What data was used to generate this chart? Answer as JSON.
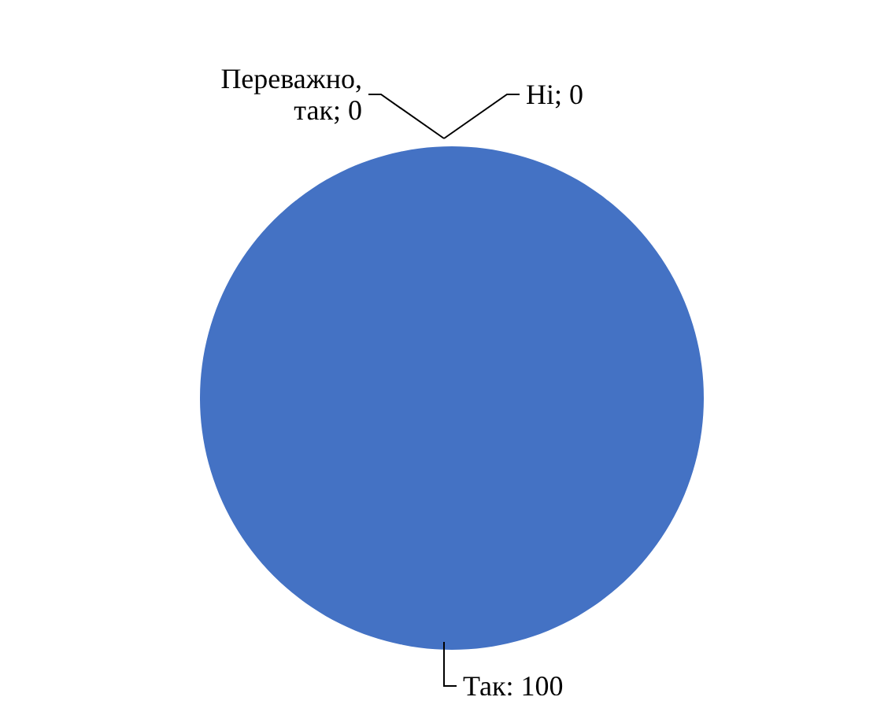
{
  "chart_data": {
    "type": "pie",
    "categories": [
      "Так",
      "Переважно, так",
      "Ні"
    ],
    "values": [
      100,
      0,
      0
    ],
    "colors": [
      "#4472c4",
      "#ed7d31",
      "#a5a5a5"
    ],
    "value_labels": [
      ": 100",
      "; 0",
      "; 0"
    ],
    "legend": false
  }
}
